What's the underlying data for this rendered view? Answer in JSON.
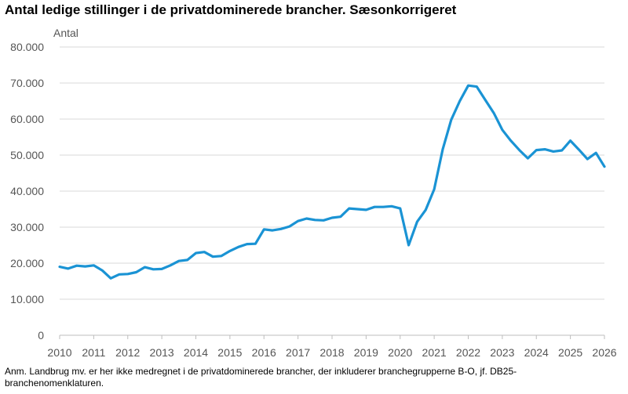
{
  "title": "Antal ledige stillinger i de privatdominerede brancher. Sæsonkorrigeret",
  "note": "Anm. Landbrug mv. er her ikke medregnet i de privatdominerede brancher, der inkluderer branchegrupperne B-O, jf. DB25-branchenomenklaturen.",
  "chart_data": {
    "type": "line",
    "ylabel": "Antal",
    "xlabel": "",
    "ylim": [
      0,
      80000
    ],
    "xlim": [
      2010,
      2026
    ],
    "grid": true,
    "line_color": "#1a93d4",
    "y_ticks": [
      {
        "value": 0,
        "label": "0"
      },
      {
        "value": 10000,
        "label": "10.000"
      },
      {
        "value": 20000,
        "label": "20.000"
      },
      {
        "value": 30000,
        "label": "30.000"
      },
      {
        "value": 40000,
        "label": "40.000"
      },
      {
        "value": 50000,
        "label": "50.000"
      },
      {
        "value": 60000,
        "label": "60.000"
      },
      {
        "value": 70000,
        "label": "70.000"
      },
      {
        "value": 80000,
        "label": "80.000"
      }
    ],
    "x_ticks": [
      "2010",
      "2011",
      "2012",
      "2013",
      "2014",
      "2015",
      "2016",
      "2017",
      "2018",
      "2019",
      "2020",
      "2021",
      "2022",
      "2023",
      "2024",
      "2025",
      "2026"
    ],
    "series": [
      {
        "x": [
          2010.0,
          2010.25,
          2010.5,
          2010.75,
          2011.0,
          2011.25,
          2011.5,
          2011.75,
          2012.0,
          2012.25,
          2012.5,
          2012.75,
          2013.0,
          2013.25,
          2013.5,
          2013.75,
          2014.0,
          2014.25,
          2014.5,
          2014.75,
          2015.0,
          2015.25,
          2015.5,
          2015.75,
          2016.0,
          2016.25,
          2016.5,
          2016.75,
          2017.0,
          2017.25,
          2017.5,
          2017.75,
          2018.0,
          2018.25,
          2018.5,
          2018.75,
          2019.0,
          2019.25,
          2019.5,
          2019.75,
          2020.0,
          2020.25,
          2020.5,
          2020.75,
          2021.0,
          2021.25,
          2021.5,
          2021.75,
          2022.0,
          2022.25,
          2022.5,
          2022.75,
          2023.0,
          2023.25,
          2023.5,
          2023.75,
          2024.0,
          2024.25,
          2024.5,
          2024.75,
          2025.0,
          2025.25,
          2025.5,
          2025.75,
          2026.0
        ],
        "y": [
          19000,
          18500,
          19300,
          19100,
          19400,
          18000,
          15800,
          16900,
          17000,
          17500,
          18900,
          18300,
          18400,
          19400,
          20600,
          20900,
          22800,
          23100,
          21800,
          22000,
          23400,
          24500,
          25300,
          25400,
          29400,
          29100,
          29500,
          30200,
          31700,
          32400,
          32000,
          31900,
          32600,
          32900,
          35200,
          35000,
          34800,
          35600,
          35600,
          35800,
          35200,
          25000,
          31500,
          34800,
          40500,
          51600,
          59800,
          65000,
          69300,
          69000,
          65300,
          61700,
          57000,
          54000,
          51400,
          49100,
          51400,
          51600,
          51000,
          51300,
          54000,
          51500,
          48900,
          50600,
          46800
        ]
      }
    ]
  }
}
